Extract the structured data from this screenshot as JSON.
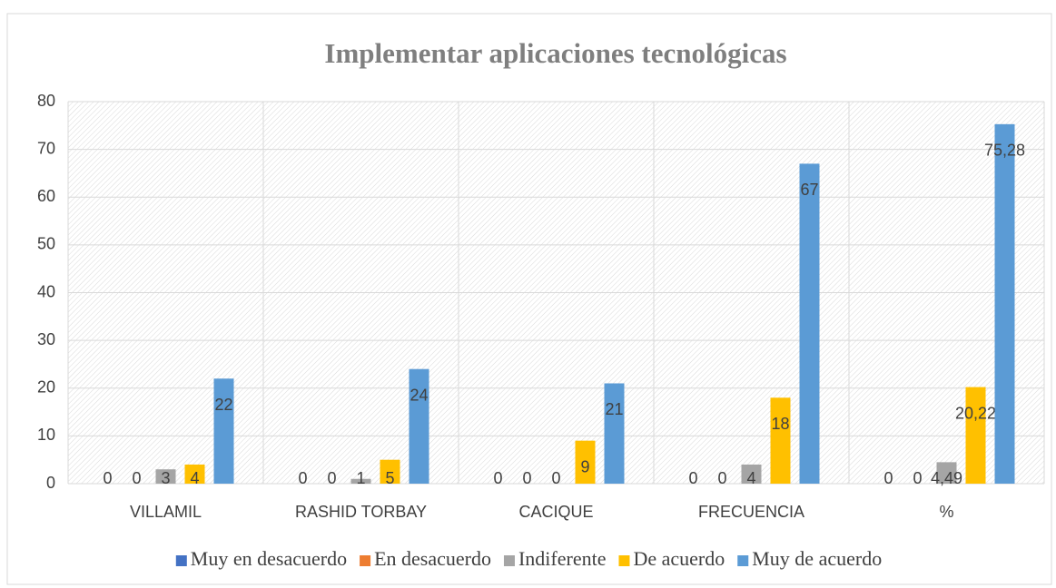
{
  "chart_data": {
    "type": "bar",
    "title": "Implementar aplicaciones tecnológicas",
    "categories": [
      "VILLAMIL",
      "RASHID TORBAY",
      "CACIQUE",
      "FRECUENCIA",
      "%"
    ],
    "series": [
      {
        "name": "Muy en desacuerdo",
        "color": "#4472c4",
        "values": [
          0,
          0,
          0,
          0,
          0
        ]
      },
      {
        "name": "En desacuerdo",
        "color": "#ed7d31",
        "values": [
          0,
          0,
          0,
          0,
          0
        ]
      },
      {
        "name": "Indiferente",
        "color": "#a5a5a5",
        "values": [
          3,
          1,
          0,
          4,
          4.49
        ],
        "value_labels": [
          "3",
          "1",
          "0",
          "4",
          "4,49"
        ]
      },
      {
        "name": "De acuerdo",
        "color": "#ffc000",
        "values": [
          4,
          5,
          9,
          18,
          20.22
        ],
        "value_labels": [
          "4",
          "5",
          "9",
          "18",
          "20,22"
        ]
      },
      {
        "name": "Muy de acuerdo",
        "color": "#5b9bd5",
        "values": [
          22,
          24,
          21,
          67,
          75.28
        ],
        "value_labels": [
          "22",
          "24",
          "21",
          "67",
          "75,28"
        ]
      }
    ],
    "ylim": [
      0,
      80
    ],
    "yticks": [
      0,
      10,
      20,
      30,
      40,
      50,
      60,
      70,
      80
    ],
    "grid": true,
    "legend": "bottom"
  }
}
